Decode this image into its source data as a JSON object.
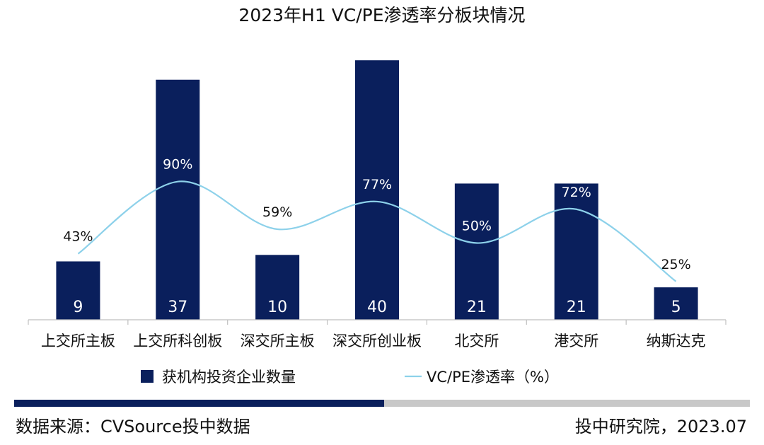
{
  "chart_data": {
    "type": "bar",
    "title": "2023年H1 VC/PE渗透率分板块情况",
    "categories": [
      "上交所主板",
      "上交所科创板",
      "深交所主板",
      "深交所创业板",
      "北交所",
      "港交所",
      "纳斯达克"
    ],
    "series": [
      {
        "name": "获机构投资企业数量",
        "type": "bar",
        "axis": "left",
        "values": [
          9,
          37,
          10,
          40,
          21,
          21,
          5
        ],
        "value_labels": [
          "9",
          "37",
          "10",
          "40",
          "21",
          "21",
          "5"
        ]
      },
      {
        "name": "VC/PE渗透率（%）",
        "type": "line",
        "axis": "right",
        "smooth": true,
        "values": [
          43,
          90,
          59,
          77,
          50,
          72,
          25
        ],
        "value_labels": [
          "43%",
          "90%",
          "59%",
          "77%",
          "50%",
          "72%",
          "25%"
        ]
      }
    ],
    "ylim_left": [
      0,
      40
    ],
    "ylim_right": [
      0,
      150
    ],
    "grid": false,
    "legend_position": "bottom"
  },
  "footer": {
    "source": "数据来源：CVSource投中数据",
    "credit": "投中研究院，2023.07"
  },
  "colors": {
    "bar": "#0a1f5c",
    "line": "#8dd1ea",
    "divider_dark": "#0a1f5c",
    "divider_light": "#c8c8c8",
    "axis": "#bfbfbf",
    "bar_label": "#ffffff"
  }
}
